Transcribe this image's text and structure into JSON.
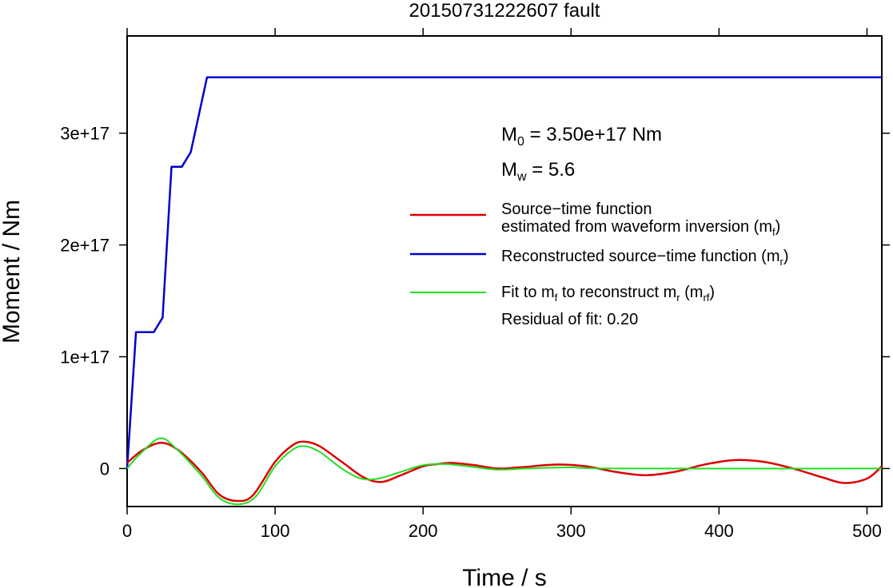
{
  "chart_data": {
    "type": "line",
    "title": "20150731222607 fault",
    "xlabel": "Time / s",
    "ylabel": "Moment / Nm",
    "xlim": [
      0,
      510
    ],
    "ylim": [
      -3.4e+16,
      3.87e+17
    ],
    "xticks": [
      0,
      100,
      200,
      300,
      400,
      500
    ],
    "xtick_labels": [
      "0",
      "100",
      "200",
      "300",
      "400",
      "500"
    ],
    "yticks": [
      0,
      1e+17,
      2e+17,
      3e+17
    ],
    "ytick_labels": [
      "0",
      "1e+17",
      "2e+17",
      "3e+17"
    ],
    "grid": false,
    "annotations": {
      "m0": {
        "sym": "M",
        "sub": "0",
        "text": " = 3.50e+17 Nm"
      },
      "mw": {
        "sym": "M",
        "sub": "w",
        "text": " = 5.6"
      },
      "residual": "Residual of fit: 0.20"
    },
    "legend": [
      {
        "series": "mf",
        "line1": "Source−time function",
        "line2": "estimated from waveform inversion (m",
        "sub": "f",
        "tail": ")"
      },
      {
        "series": "mr",
        "line1": "Reconstructed source−time function (m",
        "sub": "r",
        "tail": ")"
      },
      {
        "series": "mrf",
        "parts": [
          "Fit to m",
          "f",
          " to reconstruct m",
          "r",
          " (m",
          "rf",
          ")"
        ]
      }
    ],
    "series": [
      {
        "id": "mr",
        "color": "#0000cc",
        "x": [
          0,
          6,
          18,
          24,
          30,
          37,
          43,
          54,
          510
        ],
        "y": [
          0,
          1.22e+17,
          1.22e+17,
          1.35e+17,
          2.7e+17,
          2.7e+17,
          2.83e+17,
          3.5e+17,
          3.5e+17
        ]
      },
      {
        "id": "mf",
        "color": "#dd0000",
        "x": [
          0,
          10,
          23,
          35,
          50,
          62,
          74,
          85,
          100,
          112,
          120,
          130,
          145,
          160,
          172,
          185,
          200,
          210,
          220,
          235,
          250,
          265,
          290,
          310,
          330,
          350,
          370,
          390,
          410,
          430,
          450,
          470,
          485,
          500,
          510
        ],
        "y": [
          5000000000000000.0,
          1.6e+16,
          2.3e+16,
          1.6e+16,
          -3000000000000000.0,
          -2.3e+16,
          -2.9e+16,
          -2.4e+16,
          6000000000000000.0,
          2.1e+16,
          2.4e+16,
          2e+16,
          6000000000000000.0,
          -8000000000000000.0,
          -1.2e+16,
          -6000000000000000.0,
          2000000000000000.0,
          4000000000000000.0,
          5000000000000000.0,
          3000000000000000.0,
          0.0,
          1000000000000000.0,
          3500000000000000.0,
          2000000000000000.0,
          -3000000000000000.0,
          -6000000000000000.0,
          -3000000000000000.0,
          3500000000000000.0,
          7500000000000000.0,
          6000000000000000.0,
          0.0,
          -8000000000000000.0,
          -1.3e+16,
          -9000000000000000.0,
          2000000000000000.0
        ]
      },
      {
        "id": "mrf",
        "color": "#22dd22",
        "x": [
          0,
          8,
          22,
          33,
          50,
          62,
          75,
          87,
          100,
          112,
          120,
          130,
          145,
          158,
          170,
          185,
          200,
          215,
          230,
          250,
          270,
          300,
          330,
          510
        ],
        "y": [
          0,
          1.2e+16,
          2.7e+16,
          1.8e+16,
          -6000000000000000.0,
          -2.6e+16,
          -3.2e+16,
          -2.5e+16,
          2000000000000000.0,
          1.7e+16,
          2e+16,
          1.5e+16,
          0.0,
          -9000000000000000.0,
          -9000000000000000.0,
          -3000000000000000.0,
          3000000000000000.0,
          4000000000000000.0,
          2000000000000000.0,
          -1000000000000000.0,
          0.0,
          1000000000000000.0,
          0.0,
          0.0
        ]
      }
    ]
  }
}
